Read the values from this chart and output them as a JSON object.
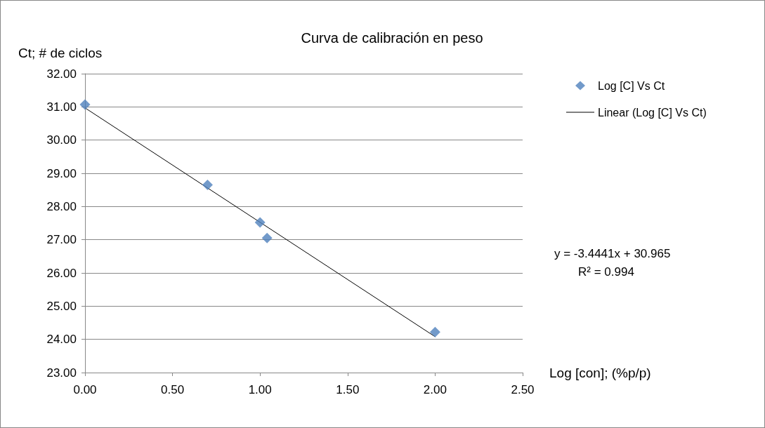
{
  "chart_data": {
    "type": "scatter",
    "title": "Curva de calibración en peso",
    "xlabel": "Log [con]; (%p/p)",
    "ylabel": "Ct; # de ciclos",
    "series": [
      {
        "name": "Log [C] Vs Ct",
        "color": "#4f81bd",
        "marker": "diamond",
        "x": [
          0,
          0.7,
          1.0,
          1.04,
          2.0
        ],
        "values": [
          31.07,
          28.65,
          27.52,
          27.05,
          24.22
        ]
      },
      {
        "name": "Linear (Log [C] Vs Ct)",
        "type": "line",
        "color": "#000000",
        "marker": "none",
        "line_style": "solid",
        "x": [
          0,
          2.0
        ],
        "values": [
          30.97,
          24.08
        ]
      }
    ],
    "xlim": [
      0,
      2.5
    ],
    "xticks": [
      {
        "value": 0,
        "label": "0.00"
      },
      {
        "value": 0.5,
        "label": "0.50"
      },
      {
        "value": 1,
        "label": "1.00"
      },
      {
        "value": 1.5,
        "label": "1.50"
      },
      {
        "value": 2,
        "label": "2.00"
      },
      {
        "value": 2.5,
        "label": "2.50"
      }
    ],
    "ylim": [
      23,
      32
    ],
    "yticks": [
      {
        "value": 23,
        "label": "23.00"
      },
      {
        "value": 24,
        "label": "24.00"
      },
      {
        "value": 25,
        "label": "25.00"
      },
      {
        "value": 26,
        "label": "26.00"
      },
      {
        "value": 27,
        "label": "27.00"
      },
      {
        "value": 28,
        "label": "28.00"
      },
      {
        "value": 29,
        "label": "29.00"
      },
      {
        "value": 30,
        "label": "30.00"
      },
      {
        "value": 31,
        "label": "31.00"
      },
      {
        "value": 32,
        "label": "32.00"
      }
    ],
    "grid": "y",
    "legend": "right",
    "annotations": [
      "y = -3.4441x + 30.965",
      "R² = 0.994"
    ]
  }
}
